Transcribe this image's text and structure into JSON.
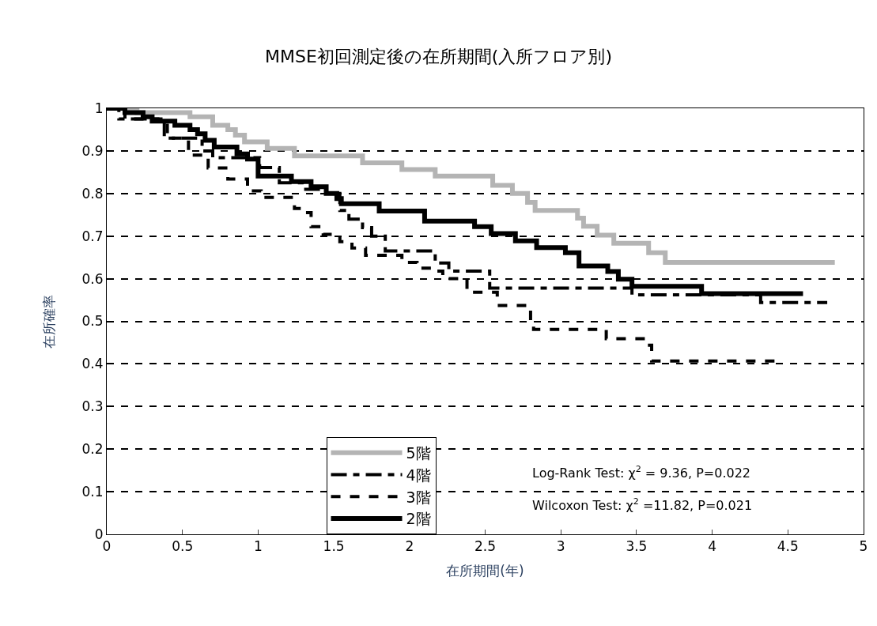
{
  "chart_data": {
    "type": "step",
    "title": "MMSE初回測定後の在所期間(入所フロア別)",
    "xlabel": "在所期間(年)",
    "ylabel": "在所確率",
    "xlim": [
      0,
      5
    ],
    "xticks": [
      0,
      0.5,
      1,
      1.5,
      2,
      2.5,
      3,
      3.5,
      4,
      4.5,
      5
    ],
    "ylim": [
      0,
      1
    ],
    "yticks": [
      0,
      0.1,
      0.2,
      0.3,
      0.4,
      0.5,
      0.6,
      0.7,
      0.8,
      0.9,
      1
    ],
    "grid": "y",
    "legend": "bottom left",
    "series": [
      {
        "name": "5階",
        "color": "#b4b4b4",
        "line_style": "solid",
        "x": [
          0,
          0.2,
          0.55,
          0.7,
          0.8,
          0.85,
          0.91,
          1.06,
          1.24,
          1.69,
          1.95,
          2.17,
          2.55,
          2.68,
          2.78,
          2.83,
          3.11,
          3.15,
          3.24,
          3.35,
          3.58,
          3.69,
          4.81
        ],
        "values": [
          1,
          0.99,
          0.98,
          0.96,
          0.95,
          0.937,
          0.921,
          0.906,
          0.888,
          0.872,
          0.856,
          0.841,
          0.819,
          0.8,
          0.779,
          0.76,
          0.742,
          0.723,
          0.702,
          0.683,
          0.661,
          0.638,
          0.638
        ]
      },
      {
        "name": "4階",
        "color": "#000000",
        "line_style": "dashed",
        "x": [
          0,
          0.08,
          0.38,
          0.63,
          0.7,
          1.01,
          1.14,
          1.3,
          1.45,
          1.54,
          1.6,
          1.69,
          1.75,
          1.84,
          2.17,
          2.26,
          2.53,
          3.47,
          4.32,
          4.76
        ],
        "values": [
          1,
          0.975,
          0.93,
          0.9,
          0.884,
          0.861,
          0.825,
          0.81,
          0.8,
          0.76,
          0.74,
          0.72,
          0.7,
          0.665,
          0.637,
          0.618,
          0.578,
          0.562,
          0.544,
          0.544
        ]
      },
      {
        "name": "3階",
        "color": "#000000",
        "line_style": "dotted",
        "x": [
          0,
          0.12,
          0.4,
          0.54,
          0.67,
          0.8,
          0.93,
          1.02,
          1.24,
          1.3,
          1.35,
          1.43,
          1.54,
          1.62,
          1.71,
          1.95,
          2.05,
          2.16,
          2.22,
          2.38,
          2.58,
          2.8,
          2.82,
          3.3,
          3.56,
          3.6,
          4.43
        ],
        "values": [
          1,
          0.975,
          0.93,
          0.89,
          0.86,
          0.834,
          0.806,
          0.791,
          0.765,
          0.755,
          0.722,
          0.704,
          0.687,
          0.672,
          0.655,
          0.638,
          0.625,
          0.618,
          0.6,
          0.568,
          0.537,
          0.494,
          0.481,
          0.459,
          0.444,
          0.407,
          0.407
        ]
      },
      {
        "name": "2階",
        "color": "#000000",
        "line_style": "solid",
        "x": [
          0,
          0.12,
          0.24,
          0.3,
          0.45,
          0.55,
          0.6,
          0.65,
          0.71,
          0.86,
          0.93,
          1.0,
          1.22,
          1.35,
          1.45,
          1.52,
          1.55,
          1.8,
          2.1,
          2.43,
          2.54,
          2.7,
          2.84,
          3.03,
          3.12,
          3.31,
          3.38,
          3.47,
          3.93,
          4.6
        ],
        "values": [
          1,
          0.99,
          0.98,
          0.97,
          0.96,
          0.95,
          0.94,
          0.925,
          0.909,
          0.893,
          0.881,
          0.841,
          0.828,
          0.816,
          0.8,
          0.788,
          0.776,
          0.759,
          0.735,
          0.722,
          0.706,
          0.689,
          0.673,
          0.661,
          0.63,
          0.617,
          0.599,
          0.582,
          0.565,
          0.565
        ]
      }
    ],
    "annotations": [
      "Log-Rank Test: χ$^{2}$ = 9.36, P=0.022",
      "Wilcoxon Test: χ$^{2}$ =11.82, P=0.021"
    ]
  }
}
